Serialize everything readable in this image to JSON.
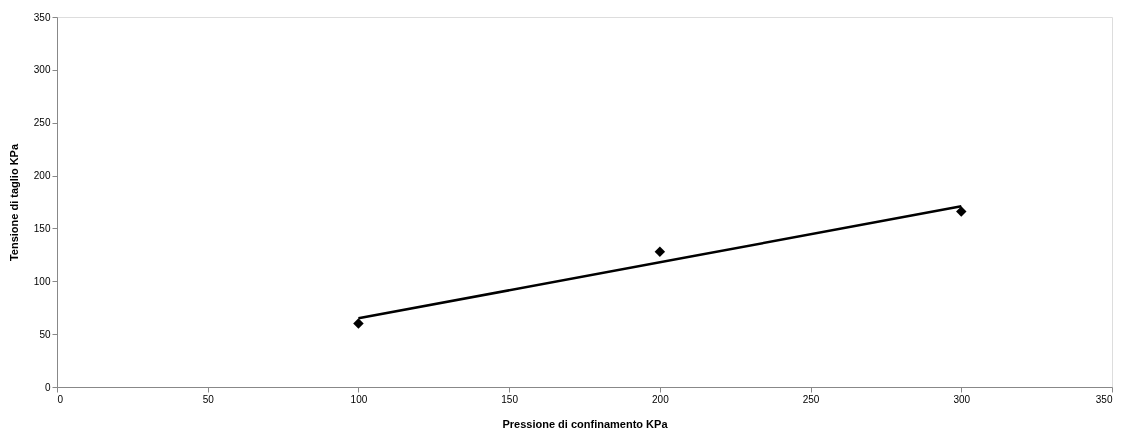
{
  "chart_data": {
    "type": "scatter",
    "xlabel": "Pressione di confinamento KPa",
    "ylabel": "Tensione di taglio KPa",
    "x": [
      100,
      200,
      300
    ],
    "series": [
      {
        "color": "#000000",
        "marker": "diamond",
        "values": [
          60,
          128,
          166
        ]
      },
      {
        "type": "line",
        "color": "#000000",
        "marker": "none",
        "line_style": "solid",
        "x": [
          100,
          300
        ],
        "values": [
          65,
          171
        ]
      }
    ],
    "xlim": [
      0,
      350
    ],
    "xticks": [
      0,
      50,
      100,
      150,
      200,
      250,
      300,
      350
    ],
    "ylim": [
      0,
      350
    ],
    "yticks": [
      0,
      50,
      100,
      150,
      200,
      250,
      300,
      350
    ],
    "grid": false
  }
}
